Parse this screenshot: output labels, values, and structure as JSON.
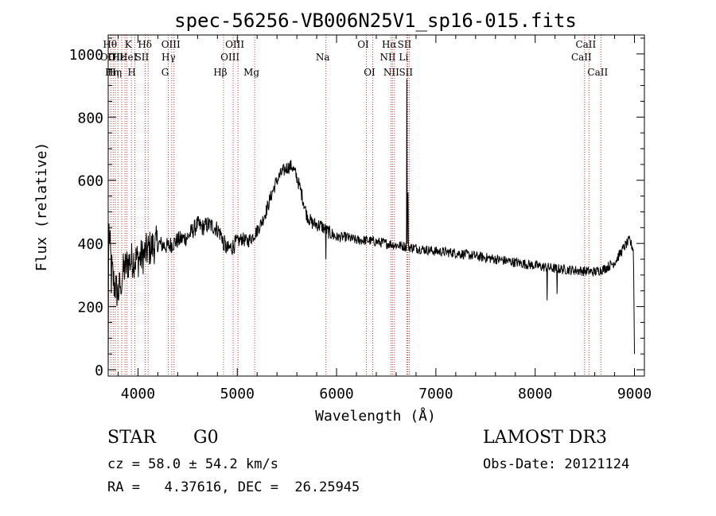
{
  "chart_data": {
    "type": "line",
    "title": "spec-56256-VB006N25V1_sp16-015.fits",
    "xlabel": "Wavelength (Å)",
    "ylabel": "Flux (relative)",
    "xlim": [
      3700,
      9100
    ],
    "ylim": [
      -20,
      1060
    ],
    "xticks": [
      4000,
      5000,
      6000,
      7000,
      8000,
      9000
    ],
    "yticks": [
      0,
      200,
      400,
      600,
      800,
      1000
    ],
    "spectrum_knots": [
      [
        3700,
        0
      ],
      [
        3705,
        460
      ],
      [
        3730,
        330
      ],
      [
        3760,
        270
      ],
      [
        3800,
        240
      ],
      [
        3850,
        310
      ],
      [
        3900,
        340
      ],
      [
        3950,
        350
      ],
      [
        4000,
        350
      ],
      [
        4050,
        360
      ],
      [
        4100,
        380
      ],
      [
        4200,
        400
      ],
      [
        4300,
        390
      ],
      [
        4350,
        400
      ],
      [
        4400,
        410
      ],
      [
        4500,
        420
      ],
      [
        4550,
        440
      ],
      [
        4600,
        460
      ],
      [
        4650,
        450
      ],
      [
        4700,
        460
      ],
      [
        4750,
        455
      ],
      [
        4800,
        445
      ],
      [
        4850,
        420
      ],
      [
        4880,
        390
      ],
      [
        4900,
        380
      ],
      [
        4950,
        390
      ],
      [
        5000,
        405
      ],
      [
        5050,
        415
      ],
      [
        5100,
        405
      ],
      [
        5150,
        420
      ],
      [
        5200,
        440
      ],
      [
        5250,
        470
      ],
      [
        5300,
        510
      ],
      [
        5350,
        560
      ],
      [
        5400,
        600
      ],
      [
        5450,
        625
      ],
      [
        5500,
        640
      ],
      [
        5550,
        645
      ],
      [
        5600,
        610
      ],
      [
        5650,
        555
      ],
      [
        5700,
        490
      ],
      [
        5750,
        465
      ],
      [
        5800,
        460
      ],
      [
        5850,
        455
      ],
      [
        5900,
        440
      ],
      [
        5950,
        430
      ],
      [
        6000,
        420
      ],
      [
        6100,
        420
      ],
      [
        6200,
        410
      ],
      [
        6300,
        410
      ],
      [
        6400,
        405
      ],
      [
        6500,
        400
      ],
      [
        6600,
        395
      ],
      [
        6700,
        390
      ],
      [
        6800,
        385
      ],
      [
        6900,
        380
      ],
      [
        7000,
        375
      ],
      [
        7200,
        370
      ],
      [
        7400,
        360
      ],
      [
        7600,
        350
      ],
      [
        7800,
        340
      ],
      [
        8000,
        330
      ],
      [
        8200,
        320
      ],
      [
        8400,
        315
      ],
      [
        8600,
        310
      ],
      [
        8700,
        320
      ],
      [
        8800,
        340
      ],
      [
        8900,
        390
      ],
      [
        8950,
        410
      ],
      [
        8990,
        380
      ],
      [
        9000,
        50
      ]
    ],
    "features": [
      {
        "x": 3732,
        "y": 242
      },
      {
        "x": 3830,
        "y": 240
      },
      {
        "x": 4862,
        "y": 380
      },
      {
        "x": 5893,
        "y": 350
      },
      {
        "x": 6708,
        "y": 920
      },
      {
        "x": 6718,
        "y": 560
      },
      {
        "x": 8120,
        "y": 220
      },
      {
        "x": 8220,
        "y": 240
      }
    ],
    "line_markers": [
      {
        "x": 3727,
        "label": "OII",
        "row": 1
      },
      {
        "x": 3750,
        "label": "Hθ",
        "row": 0
      },
      {
        "x": 3771,
        "label": "Hη",
        "row": 2
      },
      {
        "x": 3798,
        "label": "Hη",
        "row": 2
      },
      {
        "x": 3836,
        "label": "Hε",
        "row": 1
      },
      {
        "x": 3869,
        "label": "",
        "row": 0
      },
      {
        "x": 3889,
        "label": "",
        "row": 0
      },
      {
        "x": 3934,
        "label": "K",
        "row": 0
      },
      {
        "x": 3969,
        "label": "H",
        "row": 2
      },
      {
        "x": 4072,
        "label": "SII",
        "row": 1
      },
      {
        "x": 4102,
        "label": "Hδ",
        "row": 0
      },
      {
        "x": 4305,
        "label": "G",
        "row": 2
      },
      {
        "x": 4340,
        "label": "Hγ",
        "row": 1
      },
      {
        "x": 4363,
        "label": "OIII",
        "row": 0
      },
      {
        "x": 4861,
        "label": "Hβ",
        "row": 2
      },
      {
        "x": 4959,
        "label": "OIII",
        "row": 1
      },
      {
        "x": 5007,
        "label": "OIII",
        "row": 0
      },
      {
        "x": 5175,
        "label": "Mg",
        "row": 2
      },
      {
        "x": 5893,
        "label": "Na",
        "row": 1
      },
      {
        "x": 6300,
        "label": "OI",
        "row": 0
      },
      {
        "x": 6364,
        "label": "OI",
        "row": 2
      },
      {
        "x": 6548,
        "label": "NII",
        "row": 1
      },
      {
        "x": 6563,
        "label": "Hα",
        "row": 0
      },
      {
        "x": 6583,
        "label": "NII",
        "row": 2
      },
      {
        "x": 6707,
        "label": "Li",
        "row": 1
      },
      {
        "x": 6716,
        "label": "SII",
        "row": 0
      },
      {
        "x": 6731,
        "label": "SII",
        "row": 2
      },
      {
        "x": 8498,
        "label": "CaII",
        "row": 1
      },
      {
        "x": 8542,
        "label": "CaII",
        "row": 0
      },
      {
        "x": 8662,
        "label": "CaII",
        "row": 2
      }
    ]
  },
  "label_extra": {
    "he": "HeI",
    "oii_top": "OII"
  },
  "info": {
    "class_label": "STAR",
    "subclass_label": "G0",
    "cz": "cz = 58.0 ± 54.2 km/s",
    "radec": "RA =   4.37616, DEC =  26.25945",
    "survey": "LAMOST DR3",
    "obs_date": "Obs-Date: 20121124"
  }
}
